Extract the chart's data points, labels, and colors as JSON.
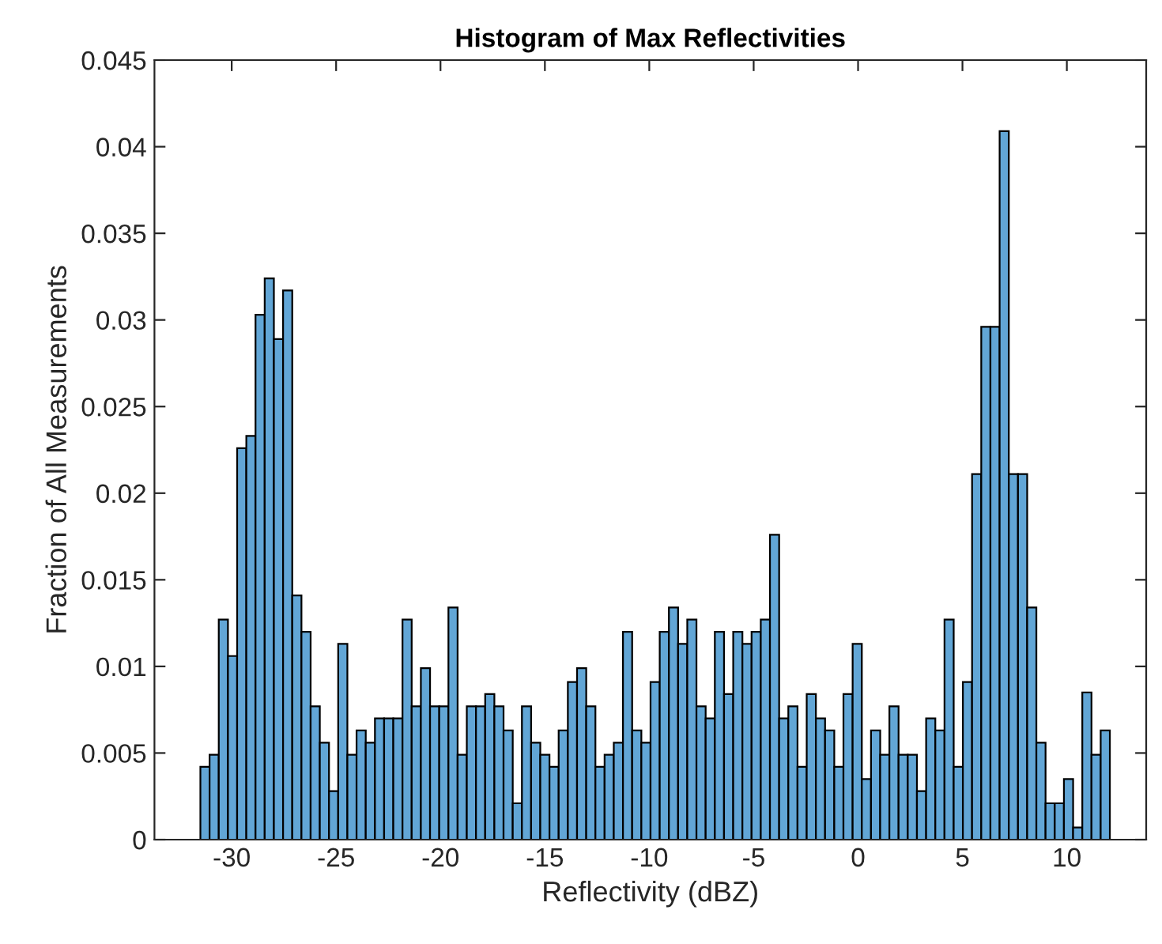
{
  "chart_data": {
    "type": "histogram",
    "title": "Histogram of Max Reflectivities",
    "xlabel": "Reflectivity (dBZ)",
    "ylabel": "Fraction of All Measurements",
    "color": "#62a6d6",
    "bins": [
      -31.5,
      -31.06,
      -30.62,
      -30.18,
      -29.74,
      -29.3,
      -28.86,
      -28.42,
      -27.98,
      -27.54,
      -27.1,
      -26.66,
      -26.22,
      -25.78,
      -25.34,
      -24.9,
      -24.46,
      -24.02,
      -23.58,
      -23.14,
      -22.7,
      -22.26,
      -21.82,
      -21.38,
      -20.94,
      -20.5,
      -20.06,
      -19.62,
      -19.18,
      -18.74,
      -18.3,
      -17.86,
      -17.42,
      -16.98,
      -16.54,
      -16.1,
      -15.66,
      -15.22,
      -14.78,
      -14.34,
      -13.9,
      -13.46,
      -13.02,
      -12.58,
      -12.14,
      -11.7,
      -11.26,
      -10.82,
      -10.38,
      -9.94,
      -9.5,
      -9.06,
      -8.62,
      -8.18,
      -7.74,
      -7.3,
      -6.86,
      -6.42,
      -5.98,
      -5.54,
      -5.1,
      -4.66,
      -4.22,
      -3.78,
      -3.34,
      -2.9,
      -2.46,
      -2.02,
      -1.58,
      -1.14,
      -0.7,
      -0.26,
      0.18,
      0.62,
      1.06,
      1.5,
      1.94,
      2.38,
      2.82,
      3.26,
      3.7,
      4.14,
      4.58,
      5.02,
      5.46,
      5.9,
      6.34,
      6.78,
      7.22,
      7.66,
      8.1,
      8.54,
      8.98,
      9.42,
      9.86,
      10.3,
      10.74,
      11.18,
      11.62,
      12.06
    ],
    "values": [
      0.0042,
      0.0049,
      0.0127,
      0.0106,
      0.0226,
      0.0233,
      0.0303,
      0.0324,
      0.0289,
      0.0317,
      0.0141,
      0.012,
      0.0077,
      0.0056,
      0.0028,
      0.0113,
      0.0049,
      0.0063,
      0.0056,
      0.007,
      0.007,
      0.007,
      0.0127,
      0.0077,
      0.0099,
      0.0077,
      0.0077,
      0.0134,
      0.0049,
      0.0077,
      0.0077,
      0.0084,
      0.0077,
      0.0063,
      0.0021,
      0.0077,
      0.0056,
      0.0049,
      0.0042,
      0.0063,
      0.0091,
      0.0099,
      0.0077,
      0.0042,
      0.0049,
      0.0056,
      0.012,
      0.0063,
      0.0056,
      0.0091,
      0.012,
      0.0134,
      0.0113,
      0.0127,
      0.0077,
      0.007,
      0.012,
      0.0084,
      0.012,
      0.0113,
      0.012,
      0.0127,
      0.0176,
      0.007,
      0.0077,
      0.0042,
      0.0084,
      0.007,
      0.0063,
      0.0042,
      0.0084,
      0.0113,
      0.0035,
      0.0063,
      0.0049,
      0.0077,
      0.0049,
      0.0049,
      0.0028,
      0.007,
      0.0063,
      0.0127,
      0.0042,
      0.0091,
      0.0211,
      0.0296,
      0.0296,
      0.0409,
      0.0211,
      0.0211,
      0.0134,
      0.0056,
      0.0021,
      0.0021,
      0.0035,
      0.0007,
      0.0085,
      0.0049,
      0.0063
    ],
    "xlim": [
      -33.7,
      13.8
    ],
    "xticks": [
      -30,
      -25,
      -20,
      -15,
      -10,
      -5,
      0,
      5,
      10
    ],
    "ylim": [
      0,
      0.045
    ],
    "yticks": [
      0,
      0.005,
      0.01,
      0.015,
      0.02,
      0.025,
      0.03,
      0.035,
      0.04,
      0.045
    ],
    "grid": false
  }
}
